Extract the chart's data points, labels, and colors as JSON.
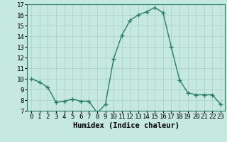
{
  "x": [
    0,
    1,
    2,
    3,
    4,
    5,
    6,
    7,
    8,
    9,
    10,
    11,
    12,
    13,
    14,
    15,
    16,
    17,
    18,
    19,
    20,
    21,
    22,
    23
  ],
  "y": [
    10.0,
    9.7,
    9.2,
    7.8,
    7.9,
    8.1,
    7.9,
    7.9,
    6.8,
    7.6,
    11.9,
    14.1,
    15.5,
    16.0,
    16.3,
    16.7,
    16.2,
    13.0,
    9.9,
    8.7,
    8.5,
    8.5,
    8.5,
    7.6
  ],
  "line_color": "#2a7d62",
  "marker": "+",
  "marker_size": 4,
  "marker_linewidth": 1.0,
  "bg_color": "#c5e8e0",
  "grid_color": "#a8cec6",
  "xlabel": "Humidex (Indice chaleur)",
  "xlabel_fontsize": 7.5,
  "tick_fontsize": 6.5,
  "ylim": [
    7,
    17
  ],
  "xlim": [
    -0.5,
    23.5
  ],
  "yticks": [
    7,
    8,
    9,
    10,
    11,
    12,
    13,
    14,
    15,
    16,
    17
  ],
  "xticks": [
    0,
    1,
    2,
    3,
    4,
    5,
    6,
    7,
    8,
    9,
    10,
    11,
    12,
    13,
    14,
    15,
    16,
    17,
    18,
    19,
    20,
    21,
    22,
    23
  ],
  "linewidth": 1.0
}
